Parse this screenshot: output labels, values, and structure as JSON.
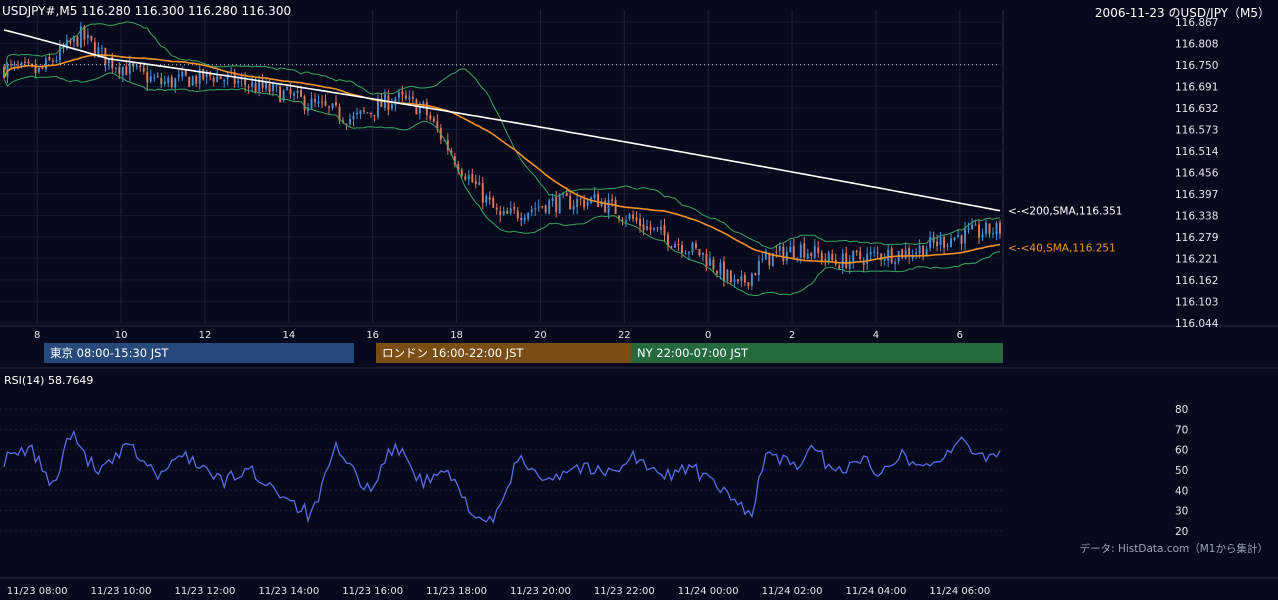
{
  "header": {
    "symbol_ohlc": "USDJPY#,M5 116.280 116.300 116.280 116.300",
    "title_right": "2006-11-23 のUSD/JPY（M5）"
  },
  "sessions": [
    {
      "label": "東京 08:00-15:30 JST",
      "color": "#24497a"
    },
    {
      "label": "ロンドン 16:00-22:00 JST",
      "color": "#7a4d14"
    },
    {
      "label": "NY 22:00-07:00 JST",
      "color": "#256a3d"
    }
  ],
  "rsi_label": "RSI(14) 58.7649",
  "source_note": "データ: HistData.com（M1から集計）",
  "colors": {
    "background": "#070a1c",
    "bull": "#4a8fd4",
    "bear": "#e07a5f",
    "sma200": "#ffffff",
    "sma40": "#f0932b",
    "bollinger": "#3aa560",
    "rsi": "#5b6be8",
    "grid": "#1e2338"
  },
  "chart_data": [
    {
      "type": "candlestick",
      "title": "2006-11-23 のUSD/JPY（M5）",
      "price_ticks": [
        "116.867",
        "116.808",
        "116.750",
        "116.691",
        "116.632",
        "116.573",
        "116.514",
        "116.456",
        "116.397",
        "116.338",
        "116.279",
        "116.221",
        "116.162",
        "116.103",
        "116.044"
      ],
      "ylim": [
        116.044,
        116.867
      ],
      "hour_ticks": [
        "8",
        "10",
        "12",
        "14",
        "16",
        "18",
        "20",
        "22",
        "0",
        "2",
        "4",
        "6"
      ],
      "xlim_bars": [
        0,
        285
      ],
      "overlays": [
        {
          "name": "<-<200,SMA,116.351",
          "value": 116.351
        },
        {
          "name": "<-<40,SMA,116.251",
          "value": 116.251
        }
      ],
      "reference_level": 116.75,
      "anchors": [
        {
          "bar": 0,
          "price": 116.74
        },
        {
          "bar": 10,
          "price": 116.73
        },
        {
          "bar": 22,
          "price": 116.83
        },
        {
          "bar": 30,
          "price": 116.76
        },
        {
          "bar": 45,
          "price": 116.7
        },
        {
          "bar": 60,
          "price": 116.72
        },
        {
          "bar": 80,
          "price": 116.67
        },
        {
          "bar": 100,
          "price": 116.6
        },
        {
          "bar": 112,
          "price": 116.66
        },
        {
          "bar": 120,
          "price": 116.63
        },
        {
          "bar": 130,
          "price": 116.48
        },
        {
          "bar": 142,
          "price": 116.33
        },
        {
          "bar": 155,
          "price": 116.37
        },
        {
          "bar": 170,
          "price": 116.38
        },
        {
          "bar": 185,
          "price": 116.3
        },
        {
          "bar": 200,
          "price": 116.23
        },
        {
          "bar": 210,
          "price": 116.14
        },
        {
          "bar": 218,
          "price": 116.22
        },
        {
          "bar": 228,
          "price": 116.25
        },
        {
          "bar": 238,
          "price": 116.21
        },
        {
          "bar": 250,
          "price": 116.23
        },
        {
          "bar": 260,
          "price": 116.24
        },
        {
          "bar": 272,
          "price": 116.28
        },
        {
          "bar": 285,
          "price": 116.3
        }
      ]
    },
    {
      "type": "line",
      "title": "RSI(14) 58.7649",
      "yticks": [
        "80",
        "70",
        "60",
        "50",
        "40",
        "30",
        "20"
      ],
      "ylim": [
        20,
        80
      ],
      "xtick_labels": [
        "11/23 08:00",
        "11/23 10:00",
        "11/23 12:00",
        "11/23 14:00",
        "11/23 16:00",
        "11/23 18:00",
        "11/23 20:00",
        "11/23 22:00",
        "11/24 00:00",
        "11/24 02:00",
        "11/24 04:00",
        "11/24 06:00"
      ],
      "anchors": [
        {
          "bar": 0,
          "value": 55
        },
        {
          "bar": 8,
          "value": 60
        },
        {
          "bar": 14,
          "value": 42
        },
        {
          "bar": 19,
          "value": 68
        },
        {
          "bar": 27,
          "value": 48
        },
        {
          "bar": 36,
          "value": 62
        },
        {
          "bar": 44,
          "value": 47
        },
        {
          "bar": 52,
          "value": 58
        },
        {
          "bar": 62,
          "value": 44
        },
        {
          "bar": 70,
          "value": 50
        },
        {
          "bar": 80,
          "value": 38
        },
        {
          "bar": 88,
          "value": 27
        },
        {
          "bar": 95,
          "value": 60
        },
        {
          "bar": 104,
          "value": 40
        },
        {
          "bar": 112,
          "value": 63
        },
        {
          "bar": 120,
          "value": 43
        },
        {
          "bar": 126,
          "value": 50
        },
        {
          "bar": 135,
          "value": 28
        },
        {
          "bar": 140,
          "value": 23
        },
        {
          "bar": 147,
          "value": 55
        },
        {
          "bar": 156,
          "value": 46
        },
        {
          "bar": 164,
          "value": 52
        },
        {
          "bar": 172,
          "value": 48
        },
        {
          "bar": 180,
          "value": 57
        },
        {
          "bar": 188,
          "value": 46
        },
        {
          "bar": 196,
          "value": 52
        },
        {
          "bar": 203,
          "value": 43
        },
        {
          "bar": 210,
          "value": 33
        },
        {
          "bar": 214,
          "value": 30
        },
        {
          "bar": 218,
          "value": 58
        },
        {
          "bar": 226,
          "value": 52
        },
        {
          "bar": 232,
          "value": 60
        },
        {
          "bar": 238,
          "value": 48
        },
        {
          "bar": 244,
          "value": 56
        },
        {
          "bar": 250,
          "value": 50
        },
        {
          "bar": 256,
          "value": 58
        },
        {
          "bar": 262,
          "value": 52
        },
        {
          "bar": 268,
          "value": 55
        },
        {
          "bar": 273,
          "value": 64
        },
        {
          "bar": 279,
          "value": 57
        },
        {
          "bar": 285,
          "value": 58.76
        }
      ]
    }
  ]
}
